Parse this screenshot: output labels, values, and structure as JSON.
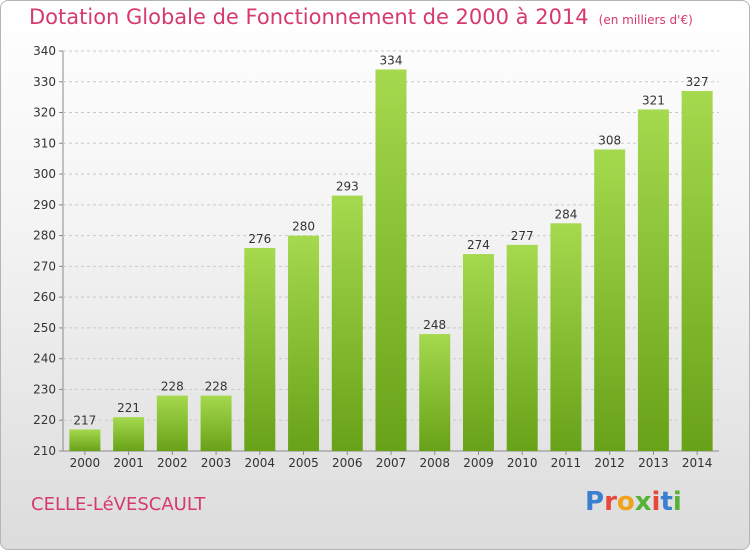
{
  "header": {
    "title": "Dotation Globale de Fonctionnement de 2000 à 2014",
    "subtitle": "(en milliers d'€)"
  },
  "footer": {
    "commune": "CELLE-LéVESCAULT",
    "logo": "Proxiti"
  },
  "colors": {
    "accent": "#d63a6c",
    "bar_light": "#9fd44a",
    "bar_dark": "#6aa31a"
  },
  "chart_data": {
    "type": "bar",
    "title": "Dotation Globale de Fonctionnement de 2000 à 2014",
    "subtitle": "(en milliers d'€)",
    "xlabel": "",
    "ylabel": "",
    "categories": [
      "2000",
      "2001",
      "2002",
      "2003",
      "2004",
      "2005",
      "2006",
      "2007",
      "2008",
      "2009",
      "2010",
      "2011",
      "2012",
      "2013",
      "2014"
    ],
    "values": [
      217,
      221,
      228,
      228,
      276,
      280,
      293,
      334,
      248,
      274,
      277,
      284,
      308,
      321,
      327
    ],
    "ylim": [
      210,
      340
    ],
    "yticks": [
      210,
      220,
      230,
      240,
      250,
      260,
      270,
      280,
      290,
      300,
      310,
      320,
      330,
      340
    ],
    "grid": true,
    "legend": "none"
  }
}
